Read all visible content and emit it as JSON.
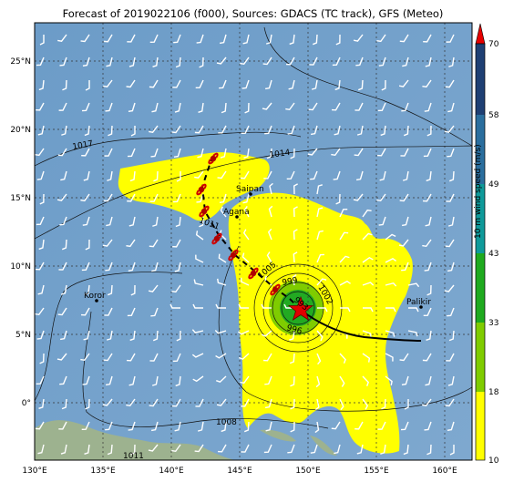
{
  "title": "Forecast of 2019022106 (f000), Sources: GDACS (TC track), GFS (Meteo)",
  "x_ticks": [
    "130°E",
    "135°E",
    "140°E",
    "145°E",
    "150°E",
    "155°E",
    "160°E"
  ],
  "y_ticks": [
    "25°N",
    "20°N",
    "15°N",
    "10°N",
    "5°N",
    "0°"
  ],
  "places": [
    {
      "name": "Saipan"
    },
    {
      "name": "Agana"
    },
    {
      "name": "Koror"
    },
    {
      "name": "Palikir"
    }
  ],
  "isobar_labels": [
    "1017",
    "1014",
    "1011",
    "1008",
    "1005",
    "1002",
    "999",
    "996",
    "993",
    "1011"
  ],
  "colorbar": {
    "label": "10 m wind speed (m/s)",
    "ticks": [
      "10",
      "18",
      "33",
      "43",
      "49",
      "58",
      "70"
    ],
    "colors": [
      "#ffff00",
      "#7fcc00",
      "#1faa1f",
      "#0f9a9a",
      "#2a6e9e",
      "#1e3f73",
      "#e60000"
    ]
  },
  "colors": {
    "ocean": "#6c9cc8",
    "land": "#9db28f",
    "wind_area": "#ffff00",
    "storm_core": "#22aa22",
    "track": "#000000",
    "storm_icon": "#d00000"
  }
}
